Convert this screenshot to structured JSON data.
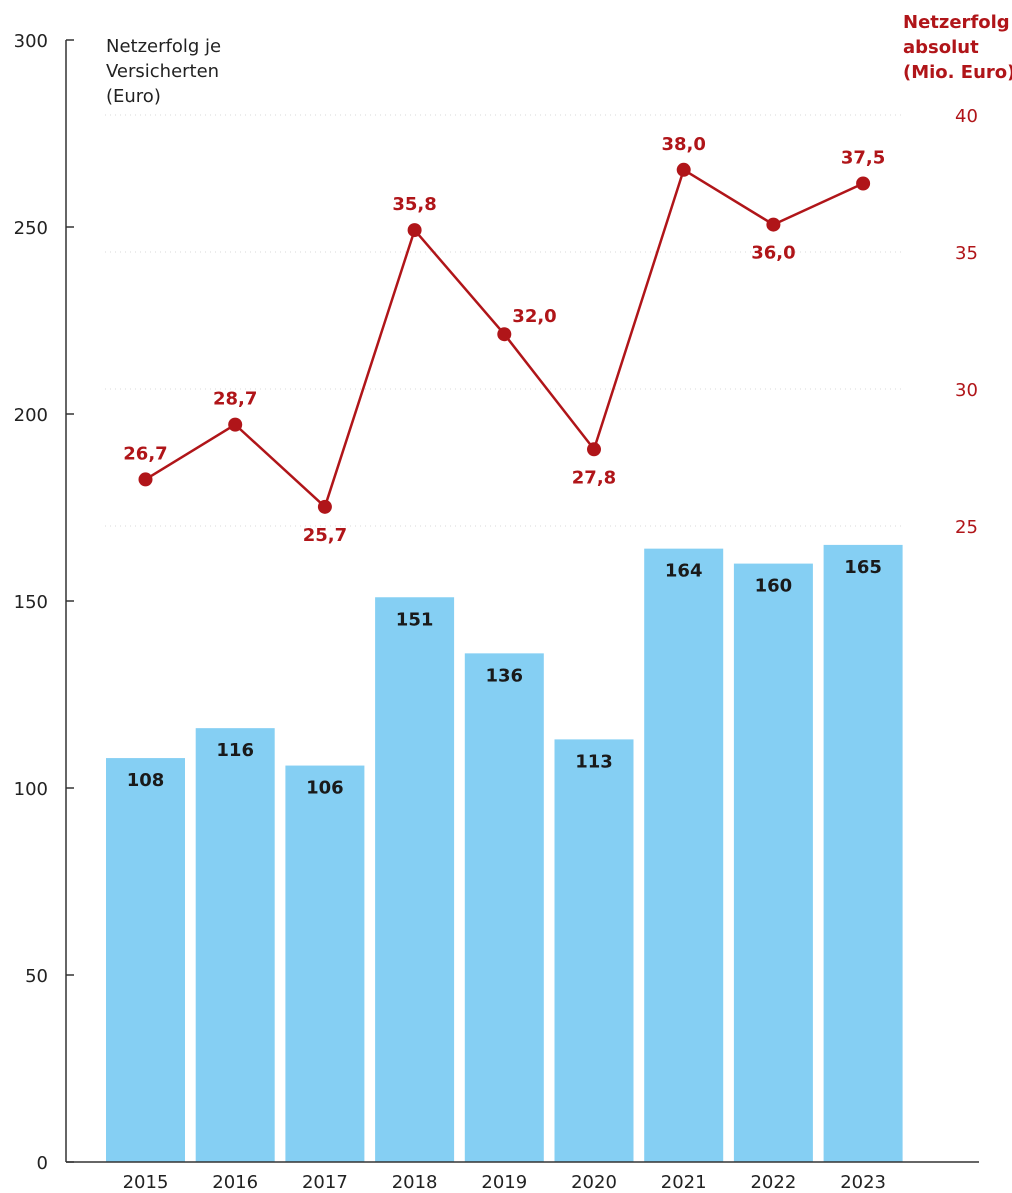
{
  "chart_data": {
    "type": "bar",
    "categories": [
      "2015",
      "2016",
      "2017",
      "2018",
      "2019",
      "2020",
      "2021",
      "2022",
      "2023"
    ],
    "series": [
      {
        "type": "bar",
        "axis": "left",
        "values": [
          108,
          116,
          106,
          151,
          136,
          113,
          164,
          160,
          165
        ],
        "labels": [
          "108",
          "116",
          "106",
          "151",
          "136",
          "113",
          "164",
          "160",
          "165"
        ],
        "color": "#85cff3"
      },
      {
        "type": "line",
        "axis": "right",
        "values": [
          26.7,
          28.7,
          25.7,
          35.8,
          32.0,
          27.8,
          38.0,
          36.0,
          37.5
        ],
        "labels": [
          "26,7",
          "28,7",
          "25,7",
          "35,8",
          "32,0",
          "27,8",
          "38,0",
          "36,0",
          "37,5"
        ],
        "label_position": [
          "above",
          "above",
          "below",
          "above",
          "right",
          "below",
          "above",
          "below",
          "above"
        ],
        "color": "#b01519"
      }
    ],
    "y_left": {
      "label_lines": [
        "Netzerfolg je",
        "Versicherten",
        "(Euro)"
      ],
      "ticks": [
        "0",
        "50",
        "100",
        "150",
        "200",
        "250",
        "300"
      ],
      "lim": [
        0,
        300
      ]
    },
    "y_right": {
      "label_lines": [
        "Netzerfolg",
        "absolut",
        "(Mio. Euro)"
      ],
      "ticks": [
        "25",
        "30",
        "35",
        "40"
      ],
      "lim": [
        20,
        40
      ]
    },
    "grid": "dotted-right-axis",
    "legend": "none"
  },
  "colors": {
    "bar": "#85cff3",
    "line": "#b01519",
    "axis": "#333333",
    "grid": "#d8d8d8"
  }
}
